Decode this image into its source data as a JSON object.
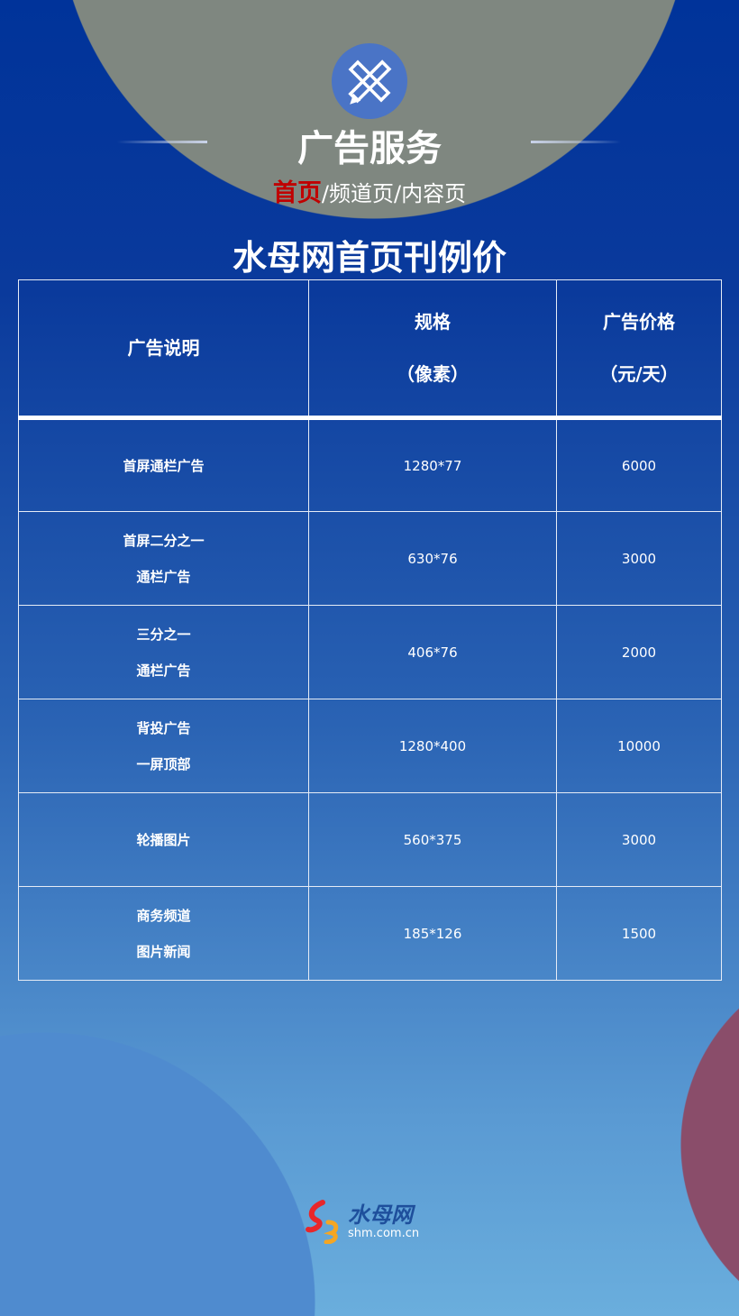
{
  "header": {
    "title": "广告服务",
    "subtitle_active": "首页",
    "subtitle_rest": "/频道页/内容页",
    "icon": "ruler-pencil-icon"
  },
  "page_title": "水母网首页刊例价",
  "table": {
    "headers": [
      {
        "line1": "广告说明"
      },
      {
        "line1": "规格",
        "line2": "（像素）"
      },
      {
        "line1": "广告价格",
        "line2": "（元/天）"
      }
    ],
    "rows": [
      {
        "desc1": "首屏通栏广告",
        "desc2": "",
        "size": "1280*77",
        "price": "6000"
      },
      {
        "desc1": "首屏二分之一",
        "desc2": "通栏广告",
        "size": "630*76",
        "price": "3000"
      },
      {
        "desc1": "三分之一",
        "desc2": "通栏广告",
        "size": "406*76",
        "price": "2000"
      },
      {
        "desc1": "背投广告",
        "desc2": "一屏顶部",
        "size": "1280*400",
        "price": "10000"
      },
      {
        "desc1": "轮播图片",
        "desc2": "",
        "size": "560*375",
        "price": "3000"
      },
      {
        "desc1": "商务频道",
        "desc2": "图片新闻",
        "size": "185*126",
        "price": "1500"
      }
    ]
  },
  "logo": {
    "name": "水母网",
    "domain": "shm.com.cn"
  },
  "colors": {
    "accent_red": "#c00000",
    "bg_top": "#00339a",
    "bg_bottom": "#6aaedd"
  }
}
